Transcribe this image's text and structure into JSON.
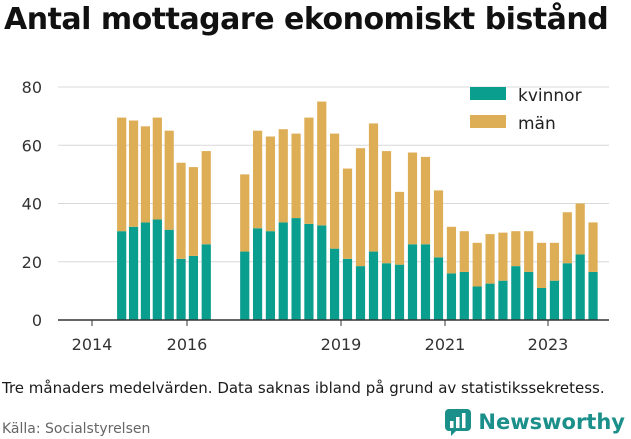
{
  "title": "Antal mottagare ekonomiskt bistånd",
  "note": "Tre månaders medelvärden. Data saknas ibland på grund av statistikssekretess.",
  "source": "Källa: Socialstyrelsen",
  "brand": "Newsworthy",
  "colors": {
    "kvinnor": "#0a9e8f",
    "man": "#deae57",
    "brand": "#1b8f8a"
  },
  "chart_data": {
    "type": "bar",
    "stacked": true,
    "title": "Antal mottagare ekonomiskt bistånd",
    "xlabel": "",
    "ylabel": "",
    "ylim": [
      0,
      80
    ],
    "yticks": [
      0,
      20,
      40,
      60,
      80
    ],
    "xticks": [
      "2014",
      "2016",
      "2019",
      "2021",
      "2023"
    ],
    "grid": true,
    "legend_position": "top-right",
    "categories": [
      "2014-Q3",
      "2014-Q4",
      "2015-Q1",
      "2015-Q2",
      "2015-Q3",
      "2015-Q4",
      "2016-Q1",
      "2016-Q2",
      "2017-Q1",
      "2017-Q2",
      "2017-Q3",
      "2017-Q4",
      "2018-Q1",
      "2018-Q2",
      "2018-Q3",
      "2018-Q4",
      "2019-Q1",
      "2019-Q2",
      "2019-Q3",
      "2019-Q4",
      "2020-Q1",
      "2020-Q2",
      "2020-Q3",
      "2020-Q4",
      "2021-Q1",
      "2021-Q2",
      "2021-Q3",
      "2021-Q4",
      "2022-Q1",
      "2022-Q2",
      "2022-Q3",
      "2022-Q4",
      "2023-Q1",
      "2023-Q2",
      "2023-Q3",
      "2023-Q4"
    ],
    "series": [
      {
        "name": "kvinnor",
        "values": [
          30.5,
          32,
          33.5,
          34.5,
          31,
          21,
          22,
          26,
          23.5,
          31.5,
          30.5,
          33.5,
          35,
          33,
          32.5,
          24.5,
          21,
          18.5,
          23.5,
          19.5,
          19,
          26,
          26,
          21.5,
          16,
          16.5,
          11.5,
          12.5,
          13.5,
          18.5,
          16.5,
          11,
          13.5,
          19.5,
          22.5,
          16.5
        ]
      },
      {
        "name": "män",
        "values": [
          39,
          36.5,
          33,
          35,
          34,
          33,
          30.5,
          32,
          26.5,
          33.5,
          32.5,
          32,
          29,
          36.5,
          42.5,
          39.5,
          31,
          40.5,
          44,
          38.5,
          25,
          31.5,
          30,
          23,
          16,
          14,
          15,
          17,
          16.5,
          12,
          14,
          15.5,
          13,
          17.5,
          17.5,
          17
        ]
      }
    ]
  }
}
